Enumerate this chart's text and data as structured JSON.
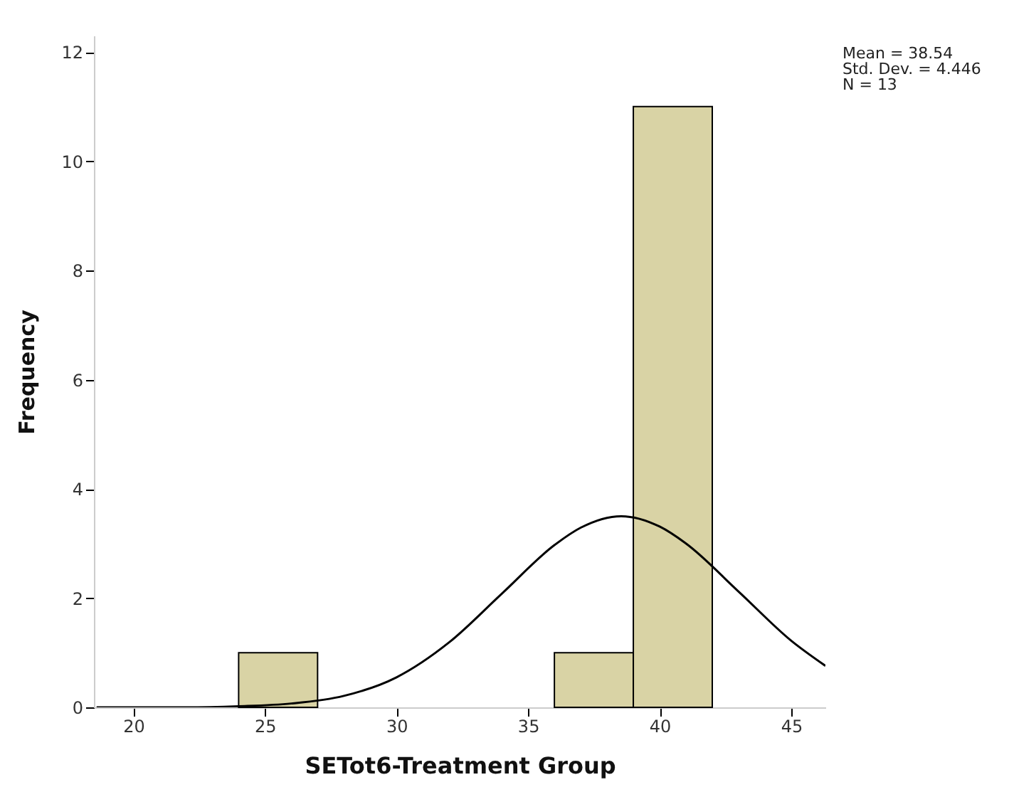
{
  "chart_data": {
    "type": "histogram",
    "xlabel": "SETot6-Treatment Group",
    "ylabel": "Frequency",
    "bins": [
      24,
      27,
      30,
      33,
      36,
      39,
      42
    ],
    "values": [
      1,
      0,
      0,
      0,
      1,
      11
    ],
    "color": "#d9d3a5",
    "series": [
      {
        "type": "line",
        "color": "#000000",
        "x": [
          18.6,
          22,
          24,
          26,
          28,
          30,
          32,
          34,
          36,
          37,
          38.54,
          40,
          41,
          43,
          45,
          46.3
        ],
        "values": [
          0,
          0,
          0.02,
          0.07,
          0.21,
          0.55,
          1.19,
          2.08,
          2.97,
          3.29,
          3.5,
          3.31,
          3.0,
          2.12,
          1.22,
          0.76
        ]
      }
    ],
    "xlim": [
      18.5,
      46.3
    ],
    "xticks": [
      20,
      25,
      30,
      35,
      40,
      45
    ],
    "ylim": [
      0,
      12.3
    ],
    "yticks": [
      0,
      2,
      4,
      6,
      8,
      10,
      12
    ],
    "grid": false,
    "annotations": [
      "Mean = 38.54",
      "Std. Dev. = 4.446",
      "N = 13"
    ]
  }
}
